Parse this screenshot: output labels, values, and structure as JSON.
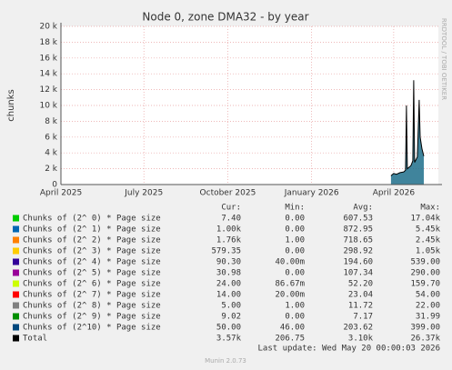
{
  "chart_data": {
    "type": "area",
    "title": "Node 0, zone DMA32 - by year",
    "y_label": "chunks",
    "side_label": "RRDTOOL / TOBI OETIKER",
    "xlim": [
      "2025-04-01",
      "2026-05-20"
    ],
    "xticks": [
      {
        "value": "2025-04-01",
        "label": "April 2025"
      },
      {
        "value": "2025-07-01",
        "label": "July 2025"
      },
      {
        "value": "2025-10-01",
        "label": "October 2025"
      },
      {
        "value": "2026-01-01",
        "label": "January 2026"
      },
      {
        "value": "2026-04-01",
        "label": "April 2026"
      }
    ],
    "ylim": [
      0,
      20000
    ],
    "yticks": [
      0,
      {
        "value": 2000,
        "label": "2 k"
      },
      {
        "value": 4000,
        "label": "4 k"
      },
      {
        "value": 6000,
        "label": "6 k"
      },
      {
        "value": 8000,
        "label": "8 k"
      },
      {
        "value": 10000,
        "label": "10 k"
      },
      {
        "value": 12000,
        "label": "12 k"
      },
      {
        "value": 14000,
        "label": "14 k"
      },
      {
        "value": 16000,
        "label": "16 k"
      },
      {
        "value": 18000,
        "label": "18 k"
      },
      {
        "value": 20000,
        "label": "20 k"
      }
    ],
    "grid": true,
    "x": [
      "2026-03-29",
      "2026-04-01",
      "2026-04-04",
      "2026-04-08",
      "2026-04-12",
      "2026-04-14",
      "2026-04-15",
      "2026-04-16",
      "2026-04-20",
      "2026-04-22",
      "2026-04-23",
      "2026-04-24",
      "2026-04-27",
      "2026-04-29",
      "2026-04-30",
      "2026-05-02",
      "2026-05-04"
    ],
    "series": [
      {
        "name": "Total",
        "color": "#000000",
        "fill": "#1f6f8b",
        "values": [
          1100,
          1400,
          1300,
          1500,
          1600,
          1800,
          10000,
          2000,
          2400,
          3000,
          13200,
          2800,
          3500,
          10700,
          6000,
          4500,
          3600
        ]
      }
    ]
  },
  "legend": {
    "headers": [
      "Cur:",
      "Min:",
      "Avg:",
      "Max:"
    ],
    "rows": [
      {
        "name": "Chunks of (2^ 0) * Page size",
        "color": "#00cc00",
        "cur": "7.40",
        "min": "0.00",
        "avg": "607.53",
        "max": "17.04k"
      },
      {
        "name": "Chunks of (2^ 1) * Page size",
        "color": "#0066b3",
        "cur": "1.00k",
        "min": "0.00",
        "avg": "872.95",
        "max": "5.45k"
      },
      {
        "name": "Chunks of (2^ 2) * Page size",
        "color": "#ff8000",
        "cur": "1.76k",
        "min": "1.00",
        "avg": "718.65",
        "max": "2.45k"
      },
      {
        "name": "Chunks of (2^ 3) * Page size",
        "color": "#ffcc00",
        "cur": "579.35",
        "min": "0.00",
        "avg": "298.92",
        "max": "1.05k"
      },
      {
        "name": "Chunks of (2^ 4) * Page size",
        "color": "#330099",
        "cur": "90.30",
        "min": "40.00m",
        "avg": "194.60",
        "max": "539.00"
      },
      {
        "name": "Chunks of (2^ 5) * Page size",
        "color": "#990099",
        "cur": "30.98",
        "min": "0.00",
        "avg": "107.34",
        "max": "290.00"
      },
      {
        "name": "Chunks of (2^ 6) * Page size",
        "color": "#ccff00",
        "cur": "24.00",
        "min": "86.67m",
        "avg": "52.20",
        "max": "159.70"
      },
      {
        "name": "Chunks of (2^ 7) * Page size",
        "color": "#ff0000",
        "cur": "14.00",
        "min": "20.00m",
        "avg": "23.04",
        "max": "54.00"
      },
      {
        "name": "Chunks of (2^ 8) * Page size",
        "color": "#808080",
        "cur": "5.00",
        "min": "1.00",
        "avg": "11.72",
        "max": "22.00"
      },
      {
        "name": "Chunks of (2^ 9) * Page size",
        "color": "#008f00",
        "cur": "9.02",
        "min": "0.00",
        "avg": "7.17",
        "max": "31.99"
      },
      {
        "name": "Chunks of (2^10) * Page size",
        "color": "#00487d",
        "cur": "50.00",
        "min": "46.00",
        "avg": "203.62",
        "max": "399.00"
      },
      {
        "name": "Total",
        "color": "#000000",
        "cur": "3.57k",
        "min": "206.75",
        "avg": "3.10k",
        "max": "26.37k"
      }
    ]
  },
  "last_update": "Last update: Wed May 20 00:00:03 2026",
  "footer": "Munin 2.0.73"
}
